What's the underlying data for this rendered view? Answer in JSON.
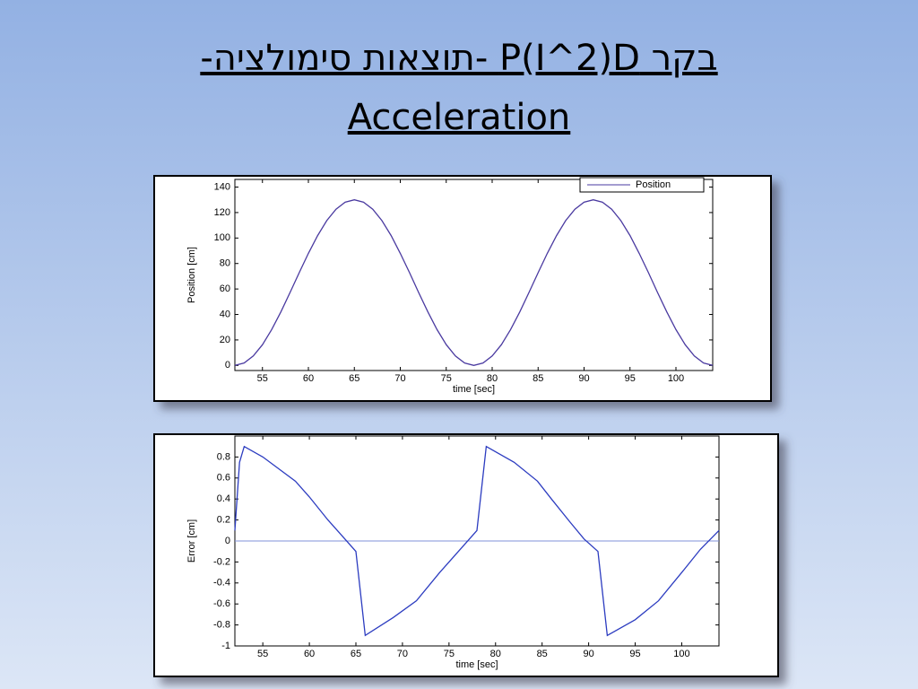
{
  "title": [
    "בקר P(I^2)D -תוצאות סימולציה-",
    "Acceleration"
  ],
  "chart_data": [
    {
      "type": "line",
      "xlabel": "time [sec]",
      "ylabel": "Position [cm]",
      "xlim": [
        52,
        104
      ],
      "xticks": [
        55,
        60,
        65,
        70,
        75,
        80,
        85,
        90,
        95,
        100
      ],
      "ylim": [
        -4,
        146
      ],
      "yticks": [
        0,
        20,
        40,
        60,
        80,
        100,
        120,
        140
      ],
      "legend": "upper right",
      "series": [
        {
          "name": "Position",
          "color": "#4a3aa0",
          "x": [
            52,
            53,
            54,
            55,
            56,
            57,
            58,
            59,
            60,
            61,
            62,
            63,
            64,
            65,
            66,
            67,
            68,
            69,
            70,
            71,
            72,
            73,
            74,
            75,
            76,
            77,
            78,
            79,
            80,
            81,
            82,
            83,
            84,
            85,
            86,
            87,
            88,
            89,
            90,
            91,
            92,
            93,
            94,
            95,
            96,
            97,
            98,
            99,
            100,
            101,
            102,
            103,
            104
          ],
          "values": [
            0,
            1.9,
            7.4,
            16.3,
            28.1,
            42.0,
            57.2,
            72.8,
            88.0,
            101.9,
            113.7,
            122.6,
            128.1,
            130,
            128.1,
            122.6,
            113.7,
            101.9,
            88.0,
            72.8,
            57.2,
            42.0,
            28.1,
            16.3,
            7.4,
            1.9,
            0,
            1.9,
            7.4,
            16.3,
            28.1,
            42.0,
            57.2,
            72.8,
            88.0,
            101.9,
            113.7,
            122.6,
            128.1,
            130,
            128.1,
            122.6,
            113.7,
            101.9,
            88.0,
            72.8,
            57.2,
            42.0,
            28.1,
            16.3,
            7.4,
            1.9,
            0
          ]
        }
      ]
    },
    {
      "type": "line",
      "xlabel": "time [sec]",
      "ylabel": "Error [cm]",
      "xlim": [
        52,
        104
      ],
      "xticks": [
        55,
        60,
        65,
        70,
        75,
        80,
        85,
        90,
        95,
        100
      ],
      "ylim": [
        -1,
        1
      ],
      "yticks": [
        -1,
        -0.8,
        -0.6,
        -0.4,
        -0.2,
        0,
        0.2,
        0.4,
        0.6,
        0.8
      ],
      "hline": 0,
      "series": [
        {
          "color": "#2c3cc0",
          "x": [
            52,
            52.5,
            53,
            55,
            58.5,
            60,
            62,
            63.5,
            65,
            65.5,
            66,
            69,
            71.5,
            74,
            76.5,
            78,
            78.5,
            79,
            82,
            84.5,
            86,
            88,
            89.5,
            91,
            91.5,
            92,
            95,
            97.5,
            100,
            102,
            104
          ],
          "values": [
            0.1,
            0.75,
            0.9,
            0.8,
            0.57,
            0.42,
            0.2,
            0.05,
            -0.1,
            -0.5,
            -0.9,
            -0.73,
            -0.57,
            -0.3,
            -0.05,
            0.1,
            0.5,
            0.9,
            0.75,
            0.57,
            0.4,
            0.18,
            0.02,
            -0.1,
            -0.5,
            -0.9,
            -0.75,
            -0.57,
            -0.3,
            -0.08,
            0.1
          ]
        }
      ]
    }
  ]
}
